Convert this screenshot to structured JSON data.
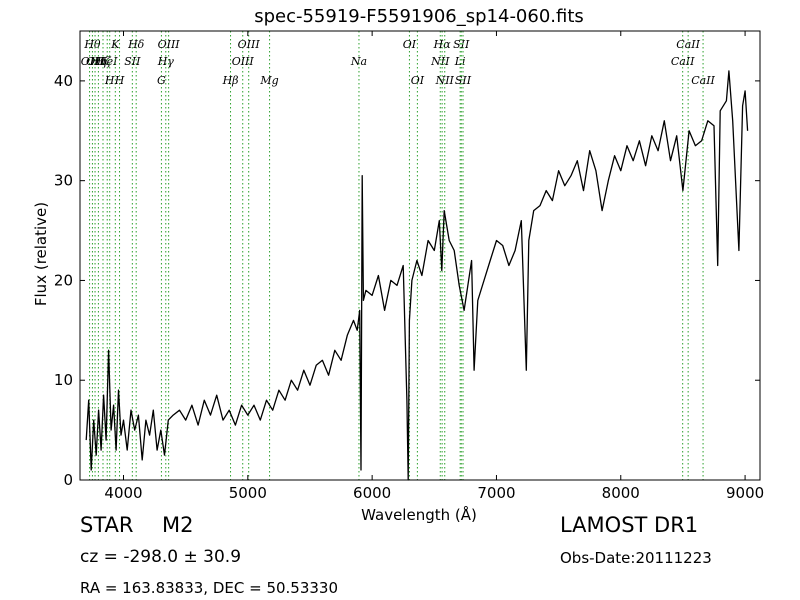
{
  "chart_data": {
    "type": "line",
    "title": "spec-55919-F5591906_sp14-060.fits",
    "xlabel": "Wavelength (Å)",
    "ylabel": "Flux (relative)",
    "xlim": [
      3650,
      9120
    ],
    "ylim": [
      0,
      45
    ],
    "xticks": [
      4000,
      5000,
      6000,
      7000,
      8000,
      9000
    ],
    "yticks": [
      0,
      10,
      20,
      30,
      40
    ],
    "line_color": "#000000",
    "marker_color": "#2ca02c",
    "series": [
      {
        "points": [
          [
            3700,
            4.0
          ],
          [
            3720,
            8.0
          ],
          [
            3740,
            1.0
          ],
          [
            3760,
            6.0
          ],
          [
            3780,
            2.5
          ],
          [
            3800,
            7.0
          ],
          [
            3820,
            3.0
          ],
          [
            3840,
            8.5
          ],
          [
            3860,
            4.0
          ],
          [
            3880,
            13.0
          ],
          [
            3900,
            5.0
          ],
          [
            3920,
            7.5
          ],
          [
            3940,
            3.0
          ],
          [
            3960,
            9.0
          ],
          [
            3980,
            4.5
          ],
          [
            4000,
            6.0
          ],
          [
            4030,
            3.0
          ],
          [
            4060,
            7.0
          ],
          [
            4090,
            5.0
          ],
          [
            4120,
            6.5
          ],
          [
            4150,
            2.0
          ],
          [
            4180,
            6.0
          ],
          [
            4210,
            4.5
          ],
          [
            4240,
            7.0
          ],
          [
            4270,
            3.0
          ],
          [
            4300,
            5.0
          ],
          [
            4330,
            2.5
          ],
          [
            4360,
            6.0
          ],
          [
            4400,
            6.5
          ],
          [
            4450,
            7.0
          ],
          [
            4500,
            6.0
          ],
          [
            4550,
            7.5
          ],
          [
            4600,
            5.5
          ],
          [
            4650,
            8.0
          ],
          [
            4700,
            6.5
          ],
          [
            4750,
            8.5
          ],
          [
            4800,
            6.0
          ],
          [
            4850,
            7.0
          ],
          [
            4900,
            5.5
          ],
          [
            4950,
            7.5
          ],
          [
            5000,
            6.5
          ],
          [
            5050,
            7.5
          ],
          [
            5100,
            6.0
          ],
          [
            5150,
            8.0
          ],
          [
            5200,
            7.0
          ],
          [
            5250,
            9.0
          ],
          [
            5300,
            8.0
          ],
          [
            5350,
            10.0
          ],
          [
            5400,
            9.0
          ],
          [
            5450,
            11.0
          ],
          [
            5500,
            9.5
          ],
          [
            5550,
            11.5
          ],
          [
            5600,
            12.0
          ],
          [
            5650,
            10.5
          ],
          [
            5700,
            13.0
          ],
          [
            5750,
            12.0
          ],
          [
            5800,
            14.5
          ],
          [
            5850,
            16.0
          ],
          [
            5880,
            15.0
          ],
          [
            5900,
            17.0
          ],
          [
            5910,
            1.0
          ],
          [
            5920,
            30.5
          ],
          [
            5930,
            18.0
          ],
          [
            5950,
            19.0
          ],
          [
            6000,
            18.5
          ],
          [
            6050,
            20.5
          ],
          [
            6100,
            17.0
          ],
          [
            6150,
            20.0
          ],
          [
            6200,
            19.5
          ],
          [
            6250,
            21.5
          ],
          [
            6280,
            8.0
          ],
          [
            6290,
            0.0
          ],
          [
            6300,
            16.0
          ],
          [
            6320,
            20.0
          ],
          [
            6360,
            22.0
          ],
          [
            6400,
            20.5
          ],
          [
            6450,
            24.0
          ],
          [
            6500,
            23.0
          ],
          [
            6540,
            26.0
          ],
          [
            6560,
            21.0
          ],
          [
            6580,
            27.0
          ],
          [
            6620,
            24.0
          ],
          [
            6660,
            23.0
          ],
          [
            6700,
            19.5
          ],
          [
            6740,
            17.0
          ],
          [
            6800,
            22.0
          ],
          [
            6820,
            11.0
          ],
          [
            6850,
            18.0
          ],
          [
            6900,
            20.0
          ],
          [
            6950,
            22.0
          ],
          [
            7000,
            24.0
          ],
          [
            7050,
            23.5
          ],
          [
            7100,
            21.5
          ],
          [
            7150,
            23.0
          ],
          [
            7200,
            26.0
          ],
          [
            7240,
            11.0
          ],
          [
            7260,
            24.0
          ],
          [
            7300,
            27.0
          ],
          [
            7350,
            27.5
          ],
          [
            7400,
            29.0
          ],
          [
            7450,
            28.0
          ],
          [
            7500,
            31.0
          ],
          [
            7550,
            29.5
          ],
          [
            7600,
            30.5
          ],
          [
            7650,
            32.0
          ],
          [
            7700,
            29.0
          ],
          [
            7750,
            33.0
          ],
          [
            7800,
            31.0
          ],
          [
            7850,
            27.0
          ],
          [
            7900,
            30.0
          ],
          [
            7950,
            32.5
          ],
          [
            8000,
            31.0
          ],
          [
            8050,
            33.5
          ],
          [
            8100,
            32.0
          ],
          [
            8150,
            34.0
          ],
          [
            8200,
            31.5
          ],
          [
            8250,
            34.5
          ],
          [
            8300,
            33.0
          ],
          [
            8350,
            36.0
          ],
          [
            8400,
            32.0
          ],
          [
            8450,
            34.5
          ],
          [
            8500,
            29.0
          ],
          [
            8550,
            35.0
          ],
          [
            8600,
            33.5
          ],
          [
            8650,
            34.0
          ],
          [
            8700,
            36.0
          ],
          [
            8750,
            35.5
          ],
          [
            8780,
            21.5
          ],
          [
            8800,
            37.0
          ],
          [
            8850,
            38.0
          ],
          [
            8870,
            41.0
          ],
          [
            8900,
            36.0
          ],
          [
            8950,
            23.0
          ],
          [
            8980,
            37.5
          ],
          [
            9000,
            39.0
          ],
          [
            9020,
            35.0
          ]
        ]
      }
    ],
    "line_markers": [
      {
        "wl": 3727,
        "label": "OII",
        "row": 1
      },
      {
        "wl": 3750,
        "label": "Hθ",
        "row": 0
      },
      {
        "wl": 3771,
        "label": "OII",
        "row": 1
      },
      {
        "wl": 3798,
        "label": "Hη",
        "row": 1
      },
      {
        "wl": 3835,
        "label": "Hζ",
        "row": 1
      },
      {
        "wl": 3869,
        "label": "HeI",
        "row": 1
      },
      {
        "wl": 3889,
        "label": "H",
        "row": 2
      },
      {
        "wl": 3934,
        "label": "K",
        "row": 0
      },
      {
        "wl": 3968,
        "label": "H",
        "row": 2
      },
      {
        "wl": 4071,
        "label": "SII",
        "row": 1
      },
      {
        "wl": 4102,
        "label": "Hδ",
        "row": 0
      },
      {
        "wl": 4305,
        "label": "G",
        "row": 2
      },
      {
        "wl": 4340,
        "label": "Hγ",
        "row": 1
      },
      {
        "wl": 4363,
        "label": "OIII",
        "row": 0
      },
      {
        "wl": 4861,
        "label": "Hβ",
        "row": 2
      },
      {
        "wl": 4959,
        "label": "OIII",
        "row": 1
      },
      {
        "wl": 5007,
        "label": "OIII",
        "row": 0
      },
      {
        "wl": 5175,
        "label": "Mg",
        "row": 2
      },
      {
        "wl": 5894,
        "label": "Na",
        "row": 1
      },
      {
        "wl": 6300,
        "label": "OI",
        "row": 0
      },
      {
        "wl": 6364,
        "label": "OI",
        "row": 2
      },
      {
        "wl": 6548,
        "label": "NII",
        "row": 1
      },
      {
        "wl": 6563,
        "label": "Hα",
        "row": 0
      },
      {
        "wl": 6584,
        "label": "NII",
        "row": 2
      },
      {
        "wl": 6708,
        "label": "Li",
        "row": 1
      },
      {
        "wl": 6717,
        "label": "SII",
        "row": 0
      },
      {
        "wl": 6731,
        "label": "SII",
        "row": 2
      },
      {
        "wl": 8498,
        "label": "CaII",
        "row": 1
      },
      {
        "wl": 8542,
        "label": "CaII",
        "row": 0
      },
      {
        "wl": 8662,
        "label": "CaII",
        "row": 2
      }
    ]
  },
  "meta": {
    "class": "STAR",
    "subclass": "M2",
    "cz": "cz = -298.0 ± 30.9",
    "radec": "RA = 163.83833, DEC = 50.53330",
    "survey": "LAMOST DR1",
    "obsdate": "Obs-Date:20111223"
  }
}
